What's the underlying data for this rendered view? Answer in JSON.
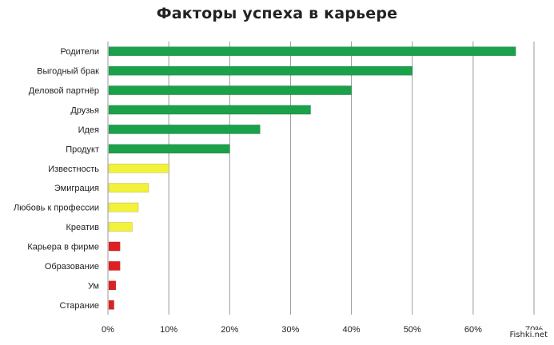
{
  "chart_data": {
    "type": "bar",
    "orientation": "horizontal",
    "title": "Факторы успеха в карьере",
    "categories": [
      "Родители",
      "Выгодный брак",
      "Деловой партнёр",
      "Друзья",
      "Идея",
      "Продукт",
      "Известность",
      "Эмиграция",
      "Любовь к профессии",
      "Креатив",
      "Карьера в фирме",
      "Образование",
      "Ум",
      "Старание"
    ],
    "values": [
      67,
      50,
      40,
      33.3,
      25,
      20,
      10,
      6.7,
      5,
      4,
      2,
      2,
      1.3,
      1
    ],
    "colors": [
      "#1aa14a",
      "#1aa14a",
      "#1aa14a",
      "#1aa14a",
      "#1aa14a",
      "#1aa14a",
      "#f2f23a",
      "#f2f23a",
      "#f2f23a",
      "#f2f23a",
      "#e02020",
      "#e02020",
      "#e02020",
      "#e02020"
    ],
    "xlim": [
      0,
      70
    ],
    "xticks": [
      0,
      10,
      20,
      30,
      40,
      50,
      60,
      70
    ],
    "tick_format": "percent",
    "grid": true,
    "legend": "none"
  },
  "watermark": "Fishki.net"
}
